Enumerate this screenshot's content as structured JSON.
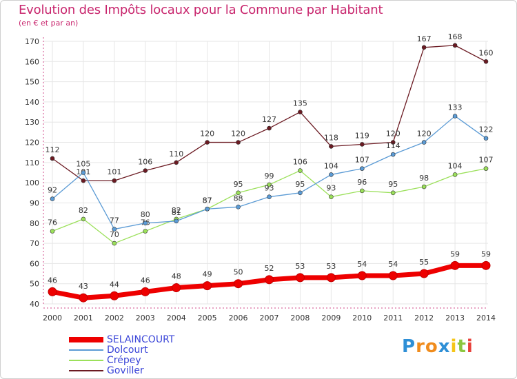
{
  "title": "Evolution des Impôts locaux pour la Commune par Habitant",
  "subtitle": "(en € et par an)",
  "logo": {
    "letters": [
      "P",
      "r",
      "o",
      "x",
      "i",
      "t",
      "i"
    ],
    "colors": [
      "#2e8fd6",
      "#f08c1d",
      "#f08c1d",
      "#2e8fd6",
      "#f5c518",
      "#8cc63f",
      "#e8403a"
    ]
  },
  "chart_data": {
    "type": "line",
    "x": [
      "2000",
      "2001",
      "2002",
      "2003",
      "2004",
      "2005",
      "2006",
      "2007",
      "2008",
      "2009",
      "2010",
      "2011",
      "2012",
      "2013",
      "2014"
    ],
    "ylim": [
      40,
      170
    ],
    "yticks": [
      40,
      50,
      60,
      70,
      80,
      90,
      100,
      110,
      120,
      130,
      140,
      150,
      160,
      170
    ],
    "grid": true,
    "legend_position": "bottom-left",
    "series": [
      {
        "name": "Goviller",
        "color": "#6b1a22",
        "values": [
          112,
          101,
          101,
          106,
          110,
          120,
          120,
          127,
          135,
          118,
          119,
          120,
          167,
          168,
          160
        ]
      },
      {
        "name": "Crépey",
        "color": "#9be05a",
        "values": [
          76,
          82,
          70,
          76,
          82,
          87,
          95,
          99,
          106,
          93,
          96,
          95,
          98,
          104,
          107
        ]
      },
      {
        "name": "Dolcourt",
        "color": "#5b9bd5",
        "values": [
          92,
          105,
          77,
          80,
          81,
          87,
          88,
          93,
          95,
          104,
          107,
          114,
          120,
          133,
          122
        ]
      },
      {
        "name": "SELAINCOURT",
        "color": "#ee0000",
        "values": [
          46,
          43,
          44,
          46,
          48,
          49,
          50,
          52,
          53,
          53,
          54,
          54,
          55,
          59,
          59
        ]
      }
    ],
    "data_labels": {
      "Goviller": [
        "112",
        "101",
        "101",
        "106",
        "110",
        "120",
        "120",
        "127",
        "135",
        "118",
        "119",
        "120",
        "167",
        "168",
        "160"
      ],
      "Crépey": [
        "76",
        "82",
        "70",
        "76",
        "82",
        "87",
        "95",
        "99",
        "106",
        "93",
        "96",
        "95",
        "98",
        "104",
        "107"
      ],
      "Dolcourt": [
        "92",
        "105",
        "77",
        "80",
        "81",
        "87",
        "88",
        "93",
        "95",
        "104",
        "107",
        "114",
        "120",
        "133",
        "122"
      ],
      "SELAINCOURT": [
        "46",
        "43",
        "44",
        "46",
        "48",
        "49",
        "50",
        "52",
        "53",
        "53",
        "54",
        "54",
        "55",
        "59",
        "59"
      ]
    }
  },
  "legend": [
    {
      "name": "SELAINCOURT",
      "color": "#ee0000"
    },
    {
      "name": "Dolcourt",
      "color": "#5b9bd5"
    },
    {
      "name": "Crépey",
      "color": "#9be05a"
    },
    {
      "name": "Goviller",
      "color": "#6b1a22"
    }
  ]
}
